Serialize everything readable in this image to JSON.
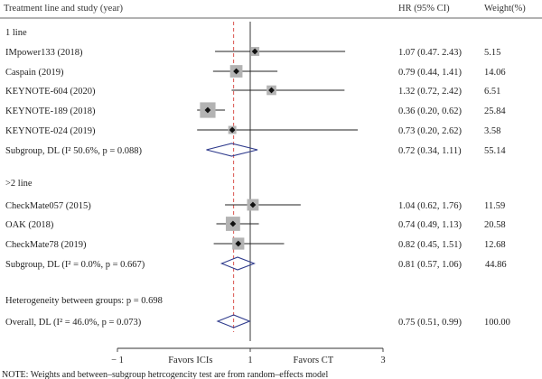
{
  "header": {
    "study_col": "Treatment line and study (year)",
    "hr_col": "HR (95% CI)",
    "weight_col": "Weight(%)"
  },
  "footnote": "NOTE: Weights and between–subgroup hetrcogencity test are from random–effects model",
  "chart_data": {
    "type": "forest",
    "null_line": 1,
    "overall_line": 0.75,
    "xlim": [
      -1,
      3
    ],
    "xticks": [
      -1,
      1,
      3
    ],
    "xtick_labels": [
      "− 1",
      "1",
      "3"
    ],
    "x_direction_labels": {
      "left": "Favors ICIs",
      "right": "Favors CT"
    },
    "groups": [
      {
        "label": "1 line",
        "studies": [
          {
            "name": "IMpower133 (2018)",
            "hr": 1.07,
            "lo": 0.47,
            "hi": 2.43,
            "hr_text": "1.07 (0.47. 2.43)",
            "weight": "5.15",
            "w": 5.15
          },
          {
            "name": "Caspain (2019)",
            "hr": 0.79,
            "lo": 0.44,
            "hi": 1.41,
            "hr_text": "0.79 (0.44, 1.41)",
            "weight": "14.06",
            "w": 14.06
          },
          {
            "name": "KEYNOTE-604 (2020)",
            "hr": 1.32,
            "lo": 0.72,
            "hi": 2.42,
            "hr_text": "1.32 (0.72, 2.42)",
            "weight": "6.51",
            "w": 6.51
          },
          {
            "name": "KEYNOTE-189 (2018)",
            "hr": 0.36,
            "lo": 0.2,
            "hi": 0.62,
            "hr_text": "0.36 (0.20, 0.62)",
            "weight": "25.84",
            "w": 25.84
          },
          {
            "name": "KEYNOTE-024 (2019)",
            "hr": 0.73,
            "lo": 0.2,
            "hi": 2.62,
            "hr_text": "0.73 (0.20, 2.62)",
            "weight": "3.58",
            "w": 3.58
          }
        ],
        "subgroup": {
          "label": "Subgroup, DL (I² 50.6%, p = 0.088)",
          "hr": 0.72,
          "lo": 0.34,
          "hi": 1.11,
          "hr_text": "0.72 (0.34, 1.11)",
          "weight": "55.14"
        }
      },
      {
        "label": ">2 line",
        "studies": [
          {
            "name": "CheckMate057 (2015)",
            "hr": 1.04,
            "lo": 0.62,
            "hi": 1.76,
            "hr_text": "1.04 (0.62, 1.76)",
            "weight": "11.59",
            "w": 11.59
          },
          {
            "name": "OAK (2018)",
            "hr": 0.74,
            "lo": 0.49,
            "hi": 1.13,
            "hr_text": "0.74 (0.49, 1.13)",
            "weight": "20.58",
            "w": 20.58
          },
          {
            "name": "CheckMate78 (2019)",
            "hr": 0.82,
            "lo": 0.45,
            "hi": 1.51,
            "hr_text": "0.82 (0.45, 1.51)",
            "weight": "12.68",
            "w": 12.68
          }
        ],
        "subgroup": {
          "label": "Subgroup, DL (I² = 0.0%, p = 0.667)",
          "hr": 0.81,
          "lo": 0.57,
          "hi": 1.06,
          "hr_text": "0.81 (0.57, 1.06)",
          "weight": "44.86"
        }
      }
    ],
    "heterogeneity": "Heterogeneity between groups: p = 0.698",
    "overall": {
      "label": "Overall, DL (I² = 46.0%, p = 0.073)",
      "hr": 0.75,
      "lo": 0.51,
      "hi": 0.99,
      "hr_text": "0.75 (0.51, 0.99)",
      "weight": "100.00"
    }
  }
}
